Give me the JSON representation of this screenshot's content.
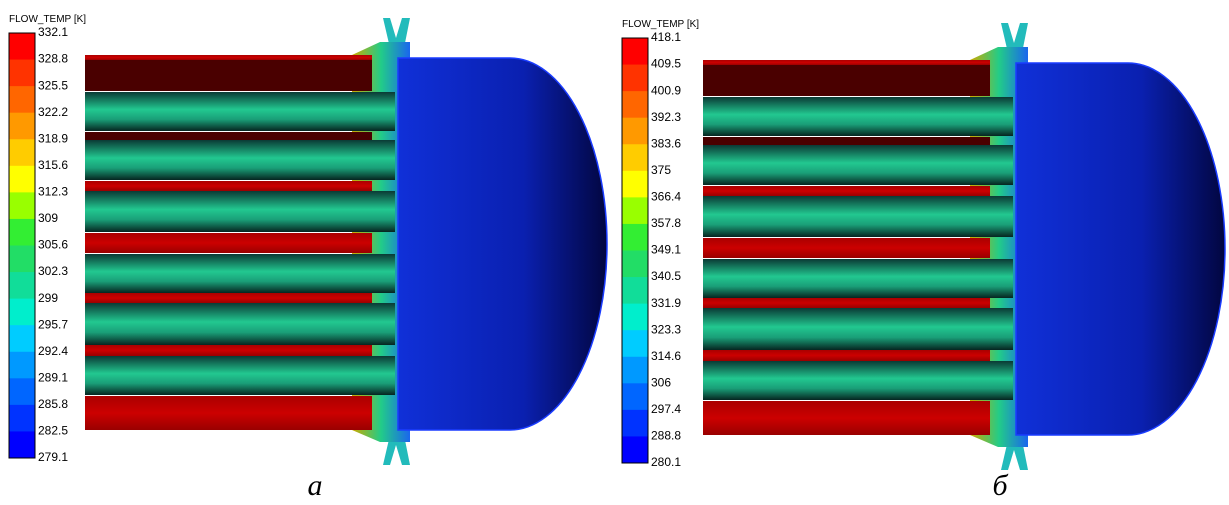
{
  "colorbar_colors": [
    "#ff0000",
    "#ff3300",
    "#ff6600",
    "#ff9900",
    "#ffcc00",
    "#ffff00",
    "#99ff00",
    "#33ee33",
    "#22dd66",
    "#11dd99",
    "#00eecc",
    "#00ccff",
    "#0099ff",
    "#0066ff",
    "#0033ff",
    "#0000ff"
  ],
  "panels": [
    {
      "legend_title": "FLOW_TEMP [K]",
      "labels": [
        "332.1",
        "328.8",
        "325.5",
        "322.2",
        "318.9",
        "315.6",
        "312.3",
        "309",
        "305.6",
        "302.3",
        "299",
        "295.7",
        "292.4",
        "289.1",
        "285.8",
        "282.5",
        "279.1"
      ],
      "caption": "а"
    },
    {
      "legend_title": "FLOW_TEMP [K]",
      "labels": [
        "418.1",
        "409.5",
        "400.9",
        "392.3",
        "383.6",
        "375",
        "366.4",
        "357.8",
        "349.1",
        "340.5",
        "331.9",
        "323.3",
        "314.6",
        "306",
        "297.4",
        "288.8",
        "280.1"
      ],
      "caption": "б"
    }
  ]
}
